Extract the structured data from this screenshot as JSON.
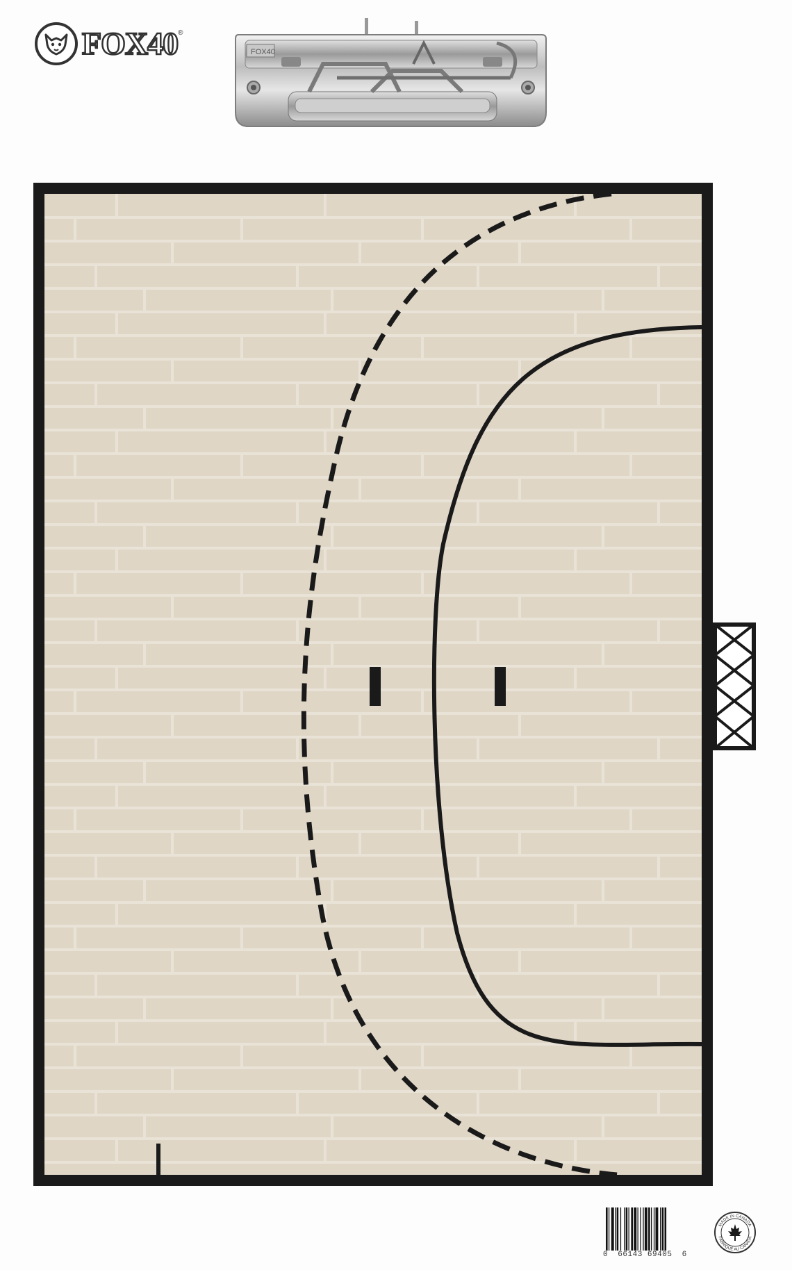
{
  "brand": {
    "name": "FOX40",
    "trademark": "®"
  },
  "clip": {
    "stamp": "FOX40"
  },
  "court": {
    "sport": "handball",
    "floor_color": "#dfd6c6",
    "plank_seam_color": "#e9e3d7",
    "line_color": "#1a1a1a"
  },
  "barcode": {
    "digits": "0  66143 69405  6"
  },
  "origin_seal": {
    "line1": "MADE IN CANADA",
    "line2": "FABRIQUÉ AU CANADA",
    "icon": "maple-leaf-icon"
  }
}
